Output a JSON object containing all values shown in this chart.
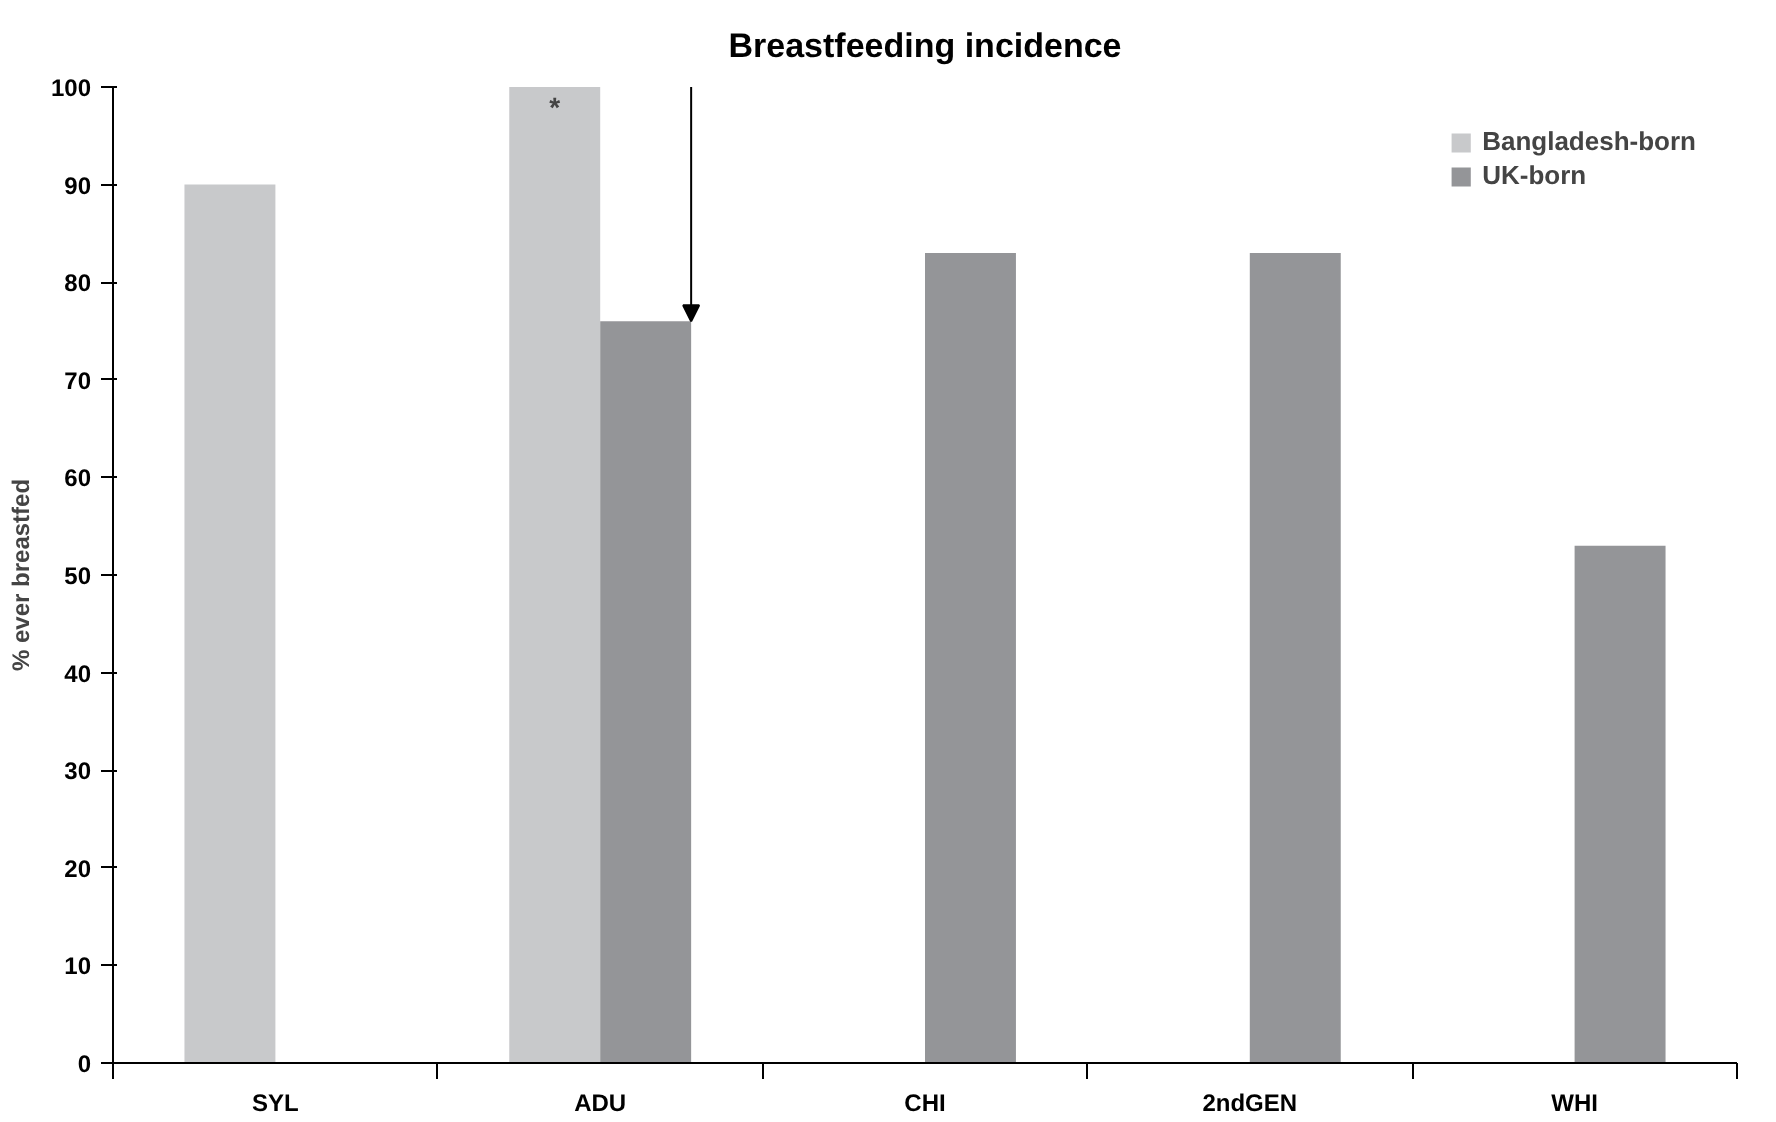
{
  "chart_data": {
    "type": "bar",
    "title": "Breastfeeding incidence",
    "ylabel": "% ever breastfed",
    "categories": [
      "SYL",
      "ADU",
      "CHI",
      "2ndGEN",
      "WHI"
    ],
    "series": [
      {
        "name": "Bangladesh-born",
        "color": "#c8c9cb",
        "values": [
          90,
          100,
          null,
          null,
          null
        ]
      },
      {
        "name": "UK-born",
        "color": "#949598",
        "values": [
          null,
          76,
          83,
          83,
          53
        ]
      }
    ],
    "ylim": [
      0,
      100
    ],
    "yticks": [
      0,
      10,
      20,
      30,
      40,
      50,
      60,
      70,
      80,
      90,
      100
    ],
    "grid": false,
    "legend": "top right",
    "annotations": [
      {
        "text": "*",
        "x": "ADU",
        "y": 100
      }
    ]
  }
}
